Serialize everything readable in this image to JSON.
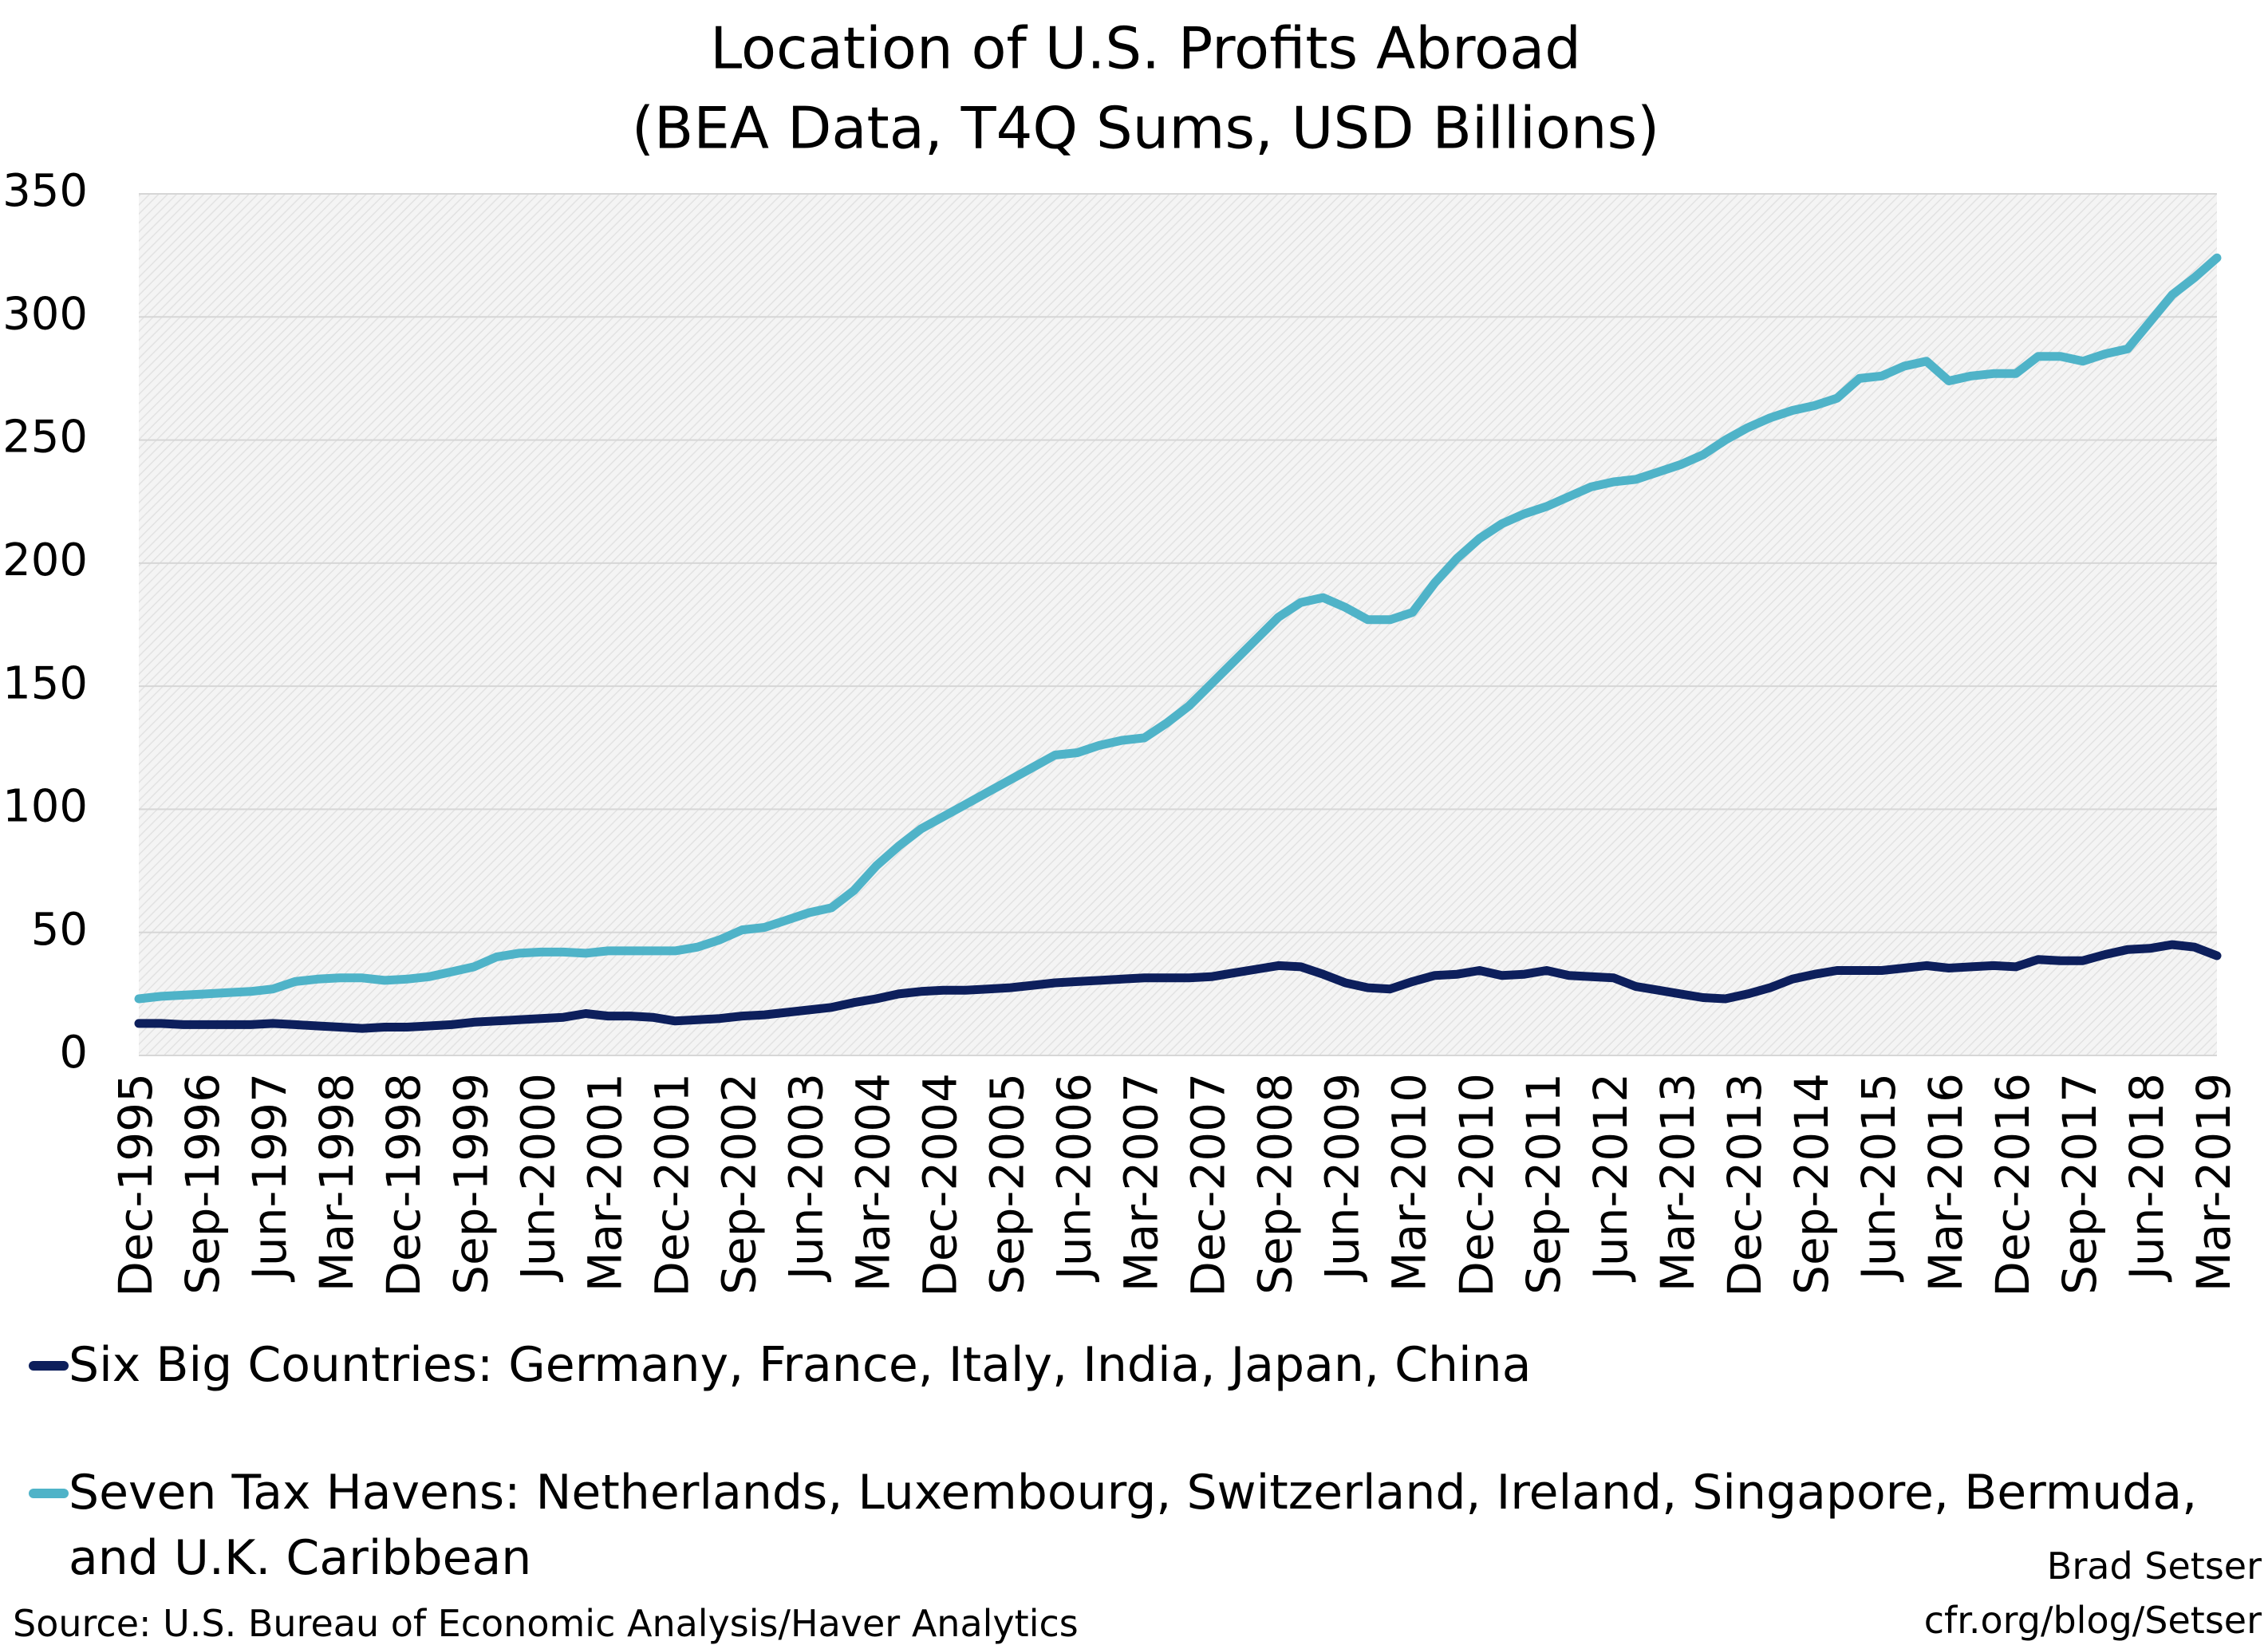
{
  "chart_data": {
    "type": "line",
    "title": "Location of U.S. Profits Abroad",
    "subtitle": "(BEA Data, T4Q Sums, USD Billions)",
    "categories": [
      "Dec-1995",
      null,
      null,
      "Sep-1996",
      null,
      null,
      "Jun-1997",
      null,
      null,
      "Mar-1998",
      null,
      null,
      "Dec-1998",
      null,
      null,
      "Sep-1999",
      null,
      null,
      "Jun-2000",
      null,
      null,
      "Mar-2001",
      null,
      null,
      "Dec-2001",
      null,
      null,
      "Sep-2002",
      null,
      null,
      "Jun-2003",
      null,
      null,
      "Mar-2004",
      null,
      null,
      "Dec-2004",
      null,
      null,
      "Sep-2005",
      null,
      null,
      "Jun-2006",
      null,
      null,
      "Mar-2007",
      null,
      null,
      "Dec-2007",
      null,
      null,
      "Sep-2008",
      null,
      null,
      "Jun-2009",
      null,
      null,
      "Mar-2010",
      null,
      null,
      "Dec-2010",
      null,
      null,
      "Sep-2011",
      null,
      null,
      "Jun-2012",
      null,
      null,
      "Mar-2013",
      null,
      null,
      "Dec-2013",
      null,
      null,
      "Sep-2014",
      null,
      null,
      "Jun-2015",
      null,
      null,
      "Mar-2016",
      null,
      null,
      "Dec-2016",
      null,
      null,
      "Sep-2017",
      null,
      null,
      "Jun-2018",
      null,
      null,
      "Mar-2019"
    ],
    "series": [
      {
        "name": "Six Big Countries: Germany, France, Italy, India, Japan, China",
        "color": "#0d1f5c",
        "values": [
          13,
          13,
          12.5,
          12.5,
          12.5,
          12.5,
          13,
          12.5,
          12,
          11.5,
          11,
          11.5,
          11.5,
          12,
          12.5,
          13.5,
          14,
          14.5,
          15,
          15.5,
          17,
          16,
          16,
          15.5,
          14,
          14.5,
          15,
          16,
          16.5,
          17.5,
          18.5,
          19.5,
          21.5,
          23,
          25,
          26,
          26.5,
          26.5,
          27,
          27.5,
          28.5,
          29.5,
          30,
          30.5,
          31,
          31.5,
          31.5,
          31.5,
          32,
          33.5,
          35,
          36.5,
          36,
          33,
          29.5,
          27.5,
          27,
          30,
          32.5,
          33,
          34.5,
          32.5,
          33,
          34.5,
          32.5,
          32,
          31.5,
          28,
          26.5,
          25,
          23.5,
          23,
          25,
          27.5,
          31,
          33,
          34.5,
          34.5,
          34.5,
          35.5,
          36.5,
          35.5,
          36,
          36.5,
          36,
          39,
          38.5,
          38.5,
          41,
          43,
          43.5,
          45,
          44,
          40.5
        ]
      },
      {
        "name": "Seven Tax Havens: Netherlands, Luxembourg, Switzerland, Ireland, Singapore, Bermuda, and U.K. Caribbean",
        "color": "#4fb3c8",
        "values": [
          23,
          24,
          24.5,
          25,
          25.5,
          26,
          27,
          30,
          31,
          31.5,
          31.5,
          30.5,
          31,
          32,
          34,
          36,
          40,
          41.5,
          42,
          42,
          41.5,
          42.5,
          42.5,
          42.5,
          42.5,
          44,
          47,
          51,
          52,
          55,
          58,
          60,
          67,
          77,
          85,
          92,
          97,
          102,
          107,
          112,
          117,
          122,
          123,
          126,
          128,
          129,
          135,
          142,
          151,
          160,
          169,
          178,
          184,
          186,
          182,
          177,
          177,
          180,
          192,
          202,
          210,
          216,
          220,
          223,
          227,
          231,
          233,
          234,
          237,
          240,
          244,
          250,
          255,
          259,
          262,
          264,
          267,
          275,
          276,
          280,
          282,
          274,
          276,
          277,
          277,
          284,
          284,
          282,
          285,
          287,
          298,
          309,
          316,
          324
        ]
      }
    ],
    "ylim": [
      0,
      350
    ],
    "yticks": [
      0,
      50,
      100,
      150,
      200,
      250,
      300,
      350
    ],
    "grid": true,
    "author": "Brad Setser",
    "url": "cfr.org/blog/Setser",
    "source": "Source: U.S. Bureau of Economic Analysis/Haver Analytics"
  }
}
